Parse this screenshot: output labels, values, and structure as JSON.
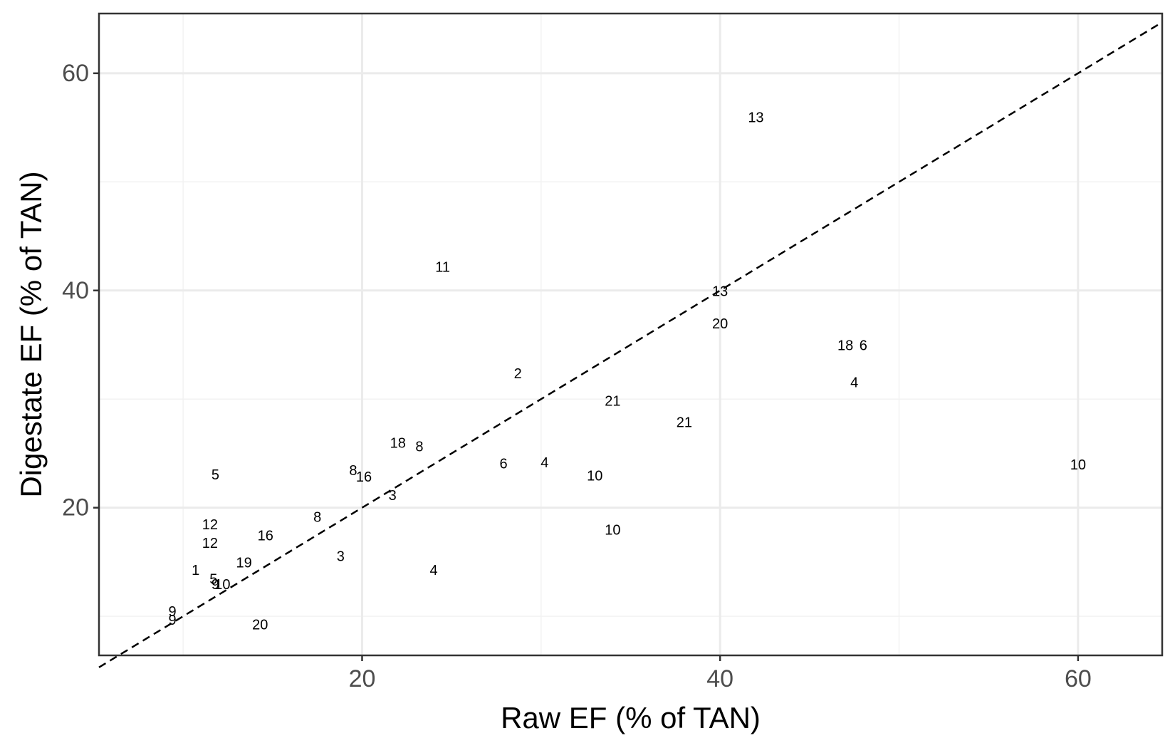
{
  "chart_data": {
    "type": "scatter",
    "title": "",
    "xlabel": "Raw EF (% of TAN)",
    "ylabel": "Digestate EF (% of TAN)",
    "xlim": [
      5.3,
      64.7
    ],
    "ylim": [
      6.4,
      65.5
    ],
    "x_ticks": [
      20,
      40,
      60
    ],
    "y_ticks": [
      20,
      40,
      60
    ],
    "x_tick_labels": [
      "20",
      "40",
      "60"
    ],
    "y_tick_labels": [
      "20",
      "40",
      "60"
    ],
    "grid": true,
    "reference_line": {
      "type": "identity",
      "style": "dashed",
      "from": [
        5.3,
        5.3
      ],
      "to": [
        64.7,
        64.7
      ]
    },
    "points": [
      {
        "label": "13",
        "x": 42.0,
        "y": 55.9
      },
      {
        "label": "11",
        "x": 24.5,
        "y": 42.1
      },
      {
        "label": "13",
        "x": 40.0,
        "y": 39.9
      },
      {
        "label": "20",
        "x": 40.0,
        "y": 36.9
      },
      {
        "label": "18",
        "x": 47.0,
        "y": 34.9
      },
      {
        "label": "6",
        "x": 48.0,
        "y": 34.9
      },
      {
        "label": "4",
        "x": 47.5,
        "y": 31.5
      },
      {
        "label": "2",
        "x": 28.7,
        "y": 32.3
      },
      {
        "label": "21",
        "x": 34.0,
        "y": 29.8
      },
      {
        "label": "21",
        "x": 38.0,
        "y": 27.8
      },
      {
        "label": "18",
        "x": 22.0,
        "y": 25.9
      },
      {
        "label": "8",
        "x": 23.2,
        "y": 25.6
      },
      {
        "label": "6",
        "x": 27.9,
        "y": 24.0
      },
      {
        "label": "4",
        "x": 30.2,
        "y": 24.1
      },
      {
        "label": "10",
        "x": 60.0,
        "y": 23.9
      },
      {
        "label": "10",
        "x": 33.0,
        "y": 22.9
      },
      {
        "label": "8",
        "x": 19.5,
        "y": 23.4
      },
      {
        "label": "16",
        "x": 20.1,
        "y": 22.8
      },
      {
        "label": "5",
        "x": 11.8,
        "y": 23.0
      },
      {
        "label": "3",
        "x": 21.7,
        "y": 21.1
      },
      {
        "label": "8",
        "x": 17.5,
        "y": 19.1
      },
      {
        "label": "12",
        "x": 11.5,
        "y": 18.4
      },
      {
        "label": "16",
        "x": 14.6,
        "y": 17.4
      },
      {
        "label": "10",
        "x": 34.0,
        "y": 17.9
      },
      {
        "label": "12",
        "x": 11.5,
        "y": 16.7
      },
      {
        "label": "3",
        "x": 18.8,
        "y": 15.5
      },
      {
        "label": "19",
        "x": 13.4,
        "y": 14.9
      },
      {
        "label": "1",
        "x": 10.7,
        "y": 14.2
      },
      {
        "label": "4",
        "x": 24.0,
        "y": 14.2
      },
      {
        "label": "5",
        "x": 11.7,
        "y": 13.4
      },
      {
        "label": "9",
        "x": 11.8,
        "y": 12.9
      },
      {
        "label": "10",
        "x": 12.2,
        "y": 12.9
      },
      {
        "label": "9",
        "x": 9.4,
        "y": 10.4
      },
      {
        "label": "9",
        "x": 9.4,
        "y": 9.6
      },
      {
        "label": "20",
        "x": 14.3,
        "y": 9.2
      }
    ]
  },
  "colors": {
    "panel_border": "#333333",
    "grid_major": "#ebebeb",
    "grid_minor": "#f2f2f2",
    "tick_label": "#4d4d4d",
    "text": "#000000",
    "reference_line": "#000000"
  }
}
